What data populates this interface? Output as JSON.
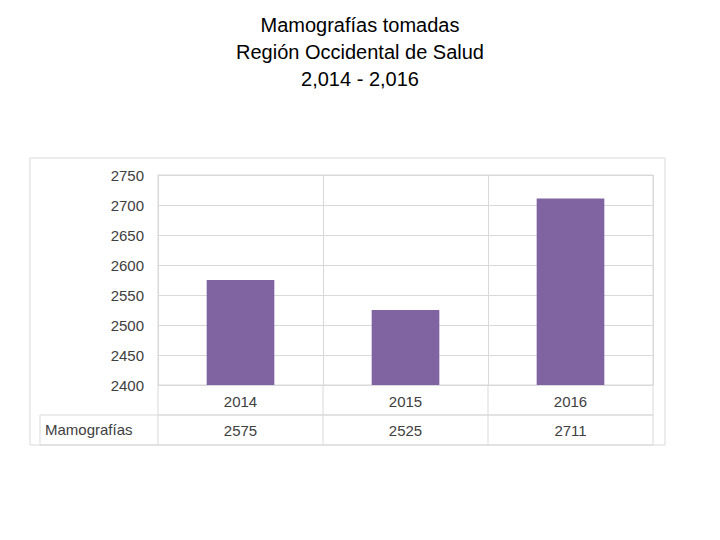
{
  "chart_data": {
    "type": "bar",
    "title": "Mamografías tomadas\nRegión Occidental de Salud\n2,014 - 2,016",
    "categories": [
      "2014",
      "2015",
      "2016"
    ],
    "series": [
      {
        "name": "Mamografías",
        "color": "#8064a2",
        "values": [
          2575,
          2525,
          2711
        ]
      }
    ],
    "ylim": [
      2400,
      2750
    ],
    "yticks": [
      2400,
      2450,
      2500,
      2550,
      2600,
      2650,
      2700,
      2750
    ],
    "grid": true
  }
}
